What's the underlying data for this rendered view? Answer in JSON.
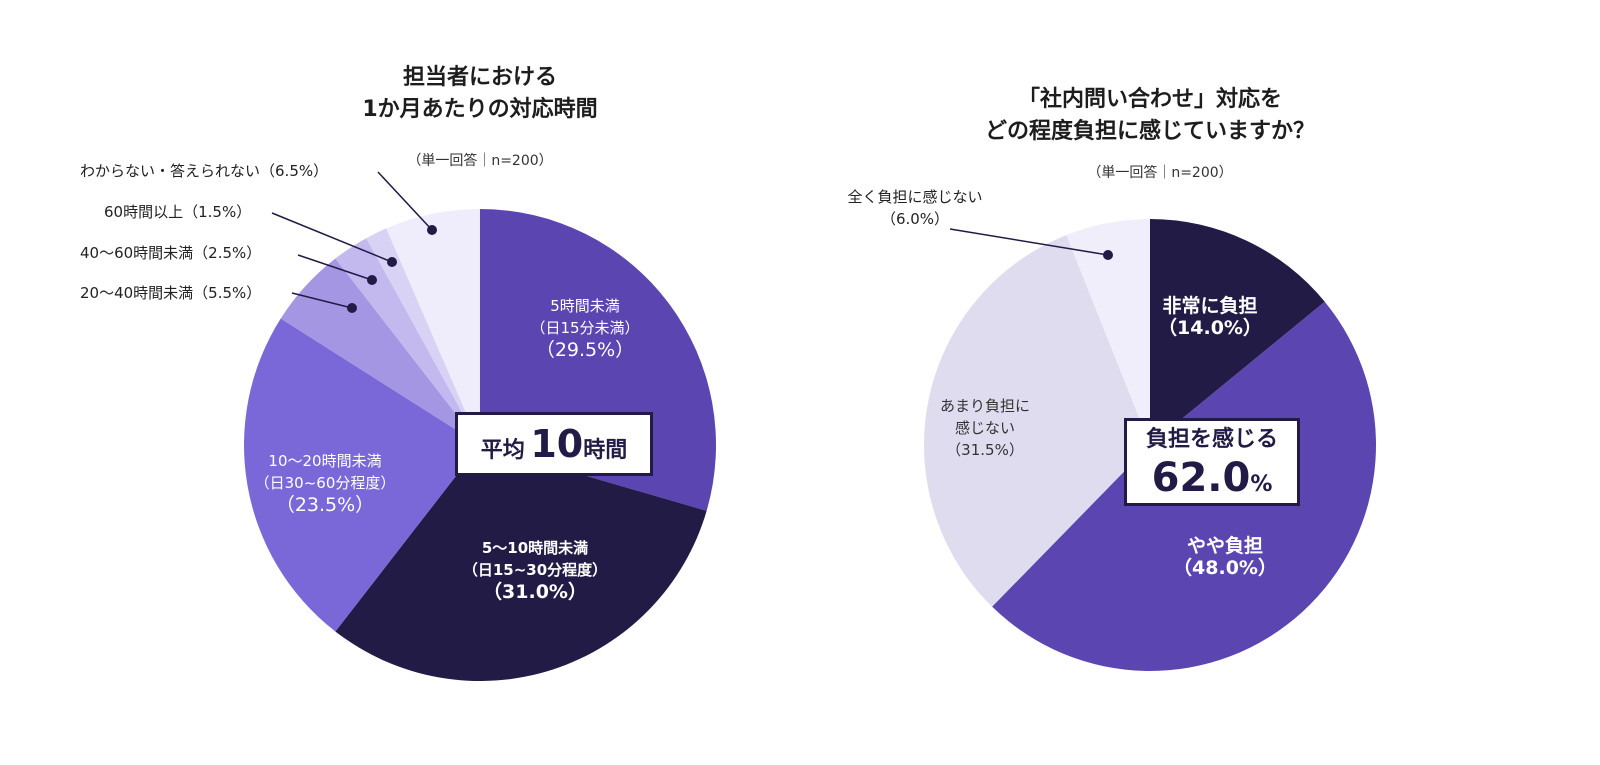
{
  "chart_data": [
    {
      "type": "pie",
      "title": "担当者における\n1か月あたりの対応時間",
      "note": "（単一回答｜n=200）",
      "center_label": {
        "prefix": "平均",
        "value": "10",
        "unit": "時間"
      },
      "slices": [
        {
          "label": "5時間未満",
          "sub": "（日15分未満）",
          "pct_text": "（29.5%）",
          "value": 29.5,
          "color": "#5b45b0"
        },
        {
          "label": "5〜10時間未満",
          "sub": "（日15~30分程度）",
          "pct_text": "（31.0%）",
          "value": 31.0,
          "color": "#221b45"
        },
        {
          "label": "10〜20時間未満",
          "sub": "（日30~60分程度）",
          "pct_text": "（23.5%）",
          "value": 23.5,
          "color": "#7b68d8"
        },
        {
          "label": "20〜40時間未満（5.5%）",
          "value": 5.5,
          "color": "#a596e4"
        },
        {
          "label": "40〜60時間未満（2.5%）",
          "value": 2.5,
          "color": "#c3b9ef"
        },
        {
          "label": "60時間以上（1.5%）",
          "value": 1.5,
          "color": "#d8d2f5"
        },
        {
          "label": "わからない・答えられない（6.5%）",
          "value": 6.5,
          "color": "#efedfb"
        }
      ]
    },
    {
      "type": "pie",
      "title": "「社内問い合わせ」対応を\nどの程度負担に感じていますか？",
      "note": "（単一回答｜n=200）",
      "center_label": {
        "prefix": "負担を感じる",
        "value": "62.0",
        "unit": "%"
      },
      "slices": [
        {
          "label": "非常に負担",
          "pct_text": "（14.0%）",
          "value": 14.0,
          "color": "#221b45"
        },
        {
          "label": "やや負担",
          "pct_text": "（48.0%）",
          "value": 48.0,
          "color": "#5b45b0"
        },
        {
          "label": "あまり負担に\n感じない",
          "pct_text": "（31.5%）",
          "value": 31.5,
          "color": "#e0dcf0"
        },
        {
          "label": "全く負担に感じない",
          "pct_text": "（6.0%）",
          "value": 6.0,
          "color": "#f0eefa"
        }
      ]
    }
  ]
}
